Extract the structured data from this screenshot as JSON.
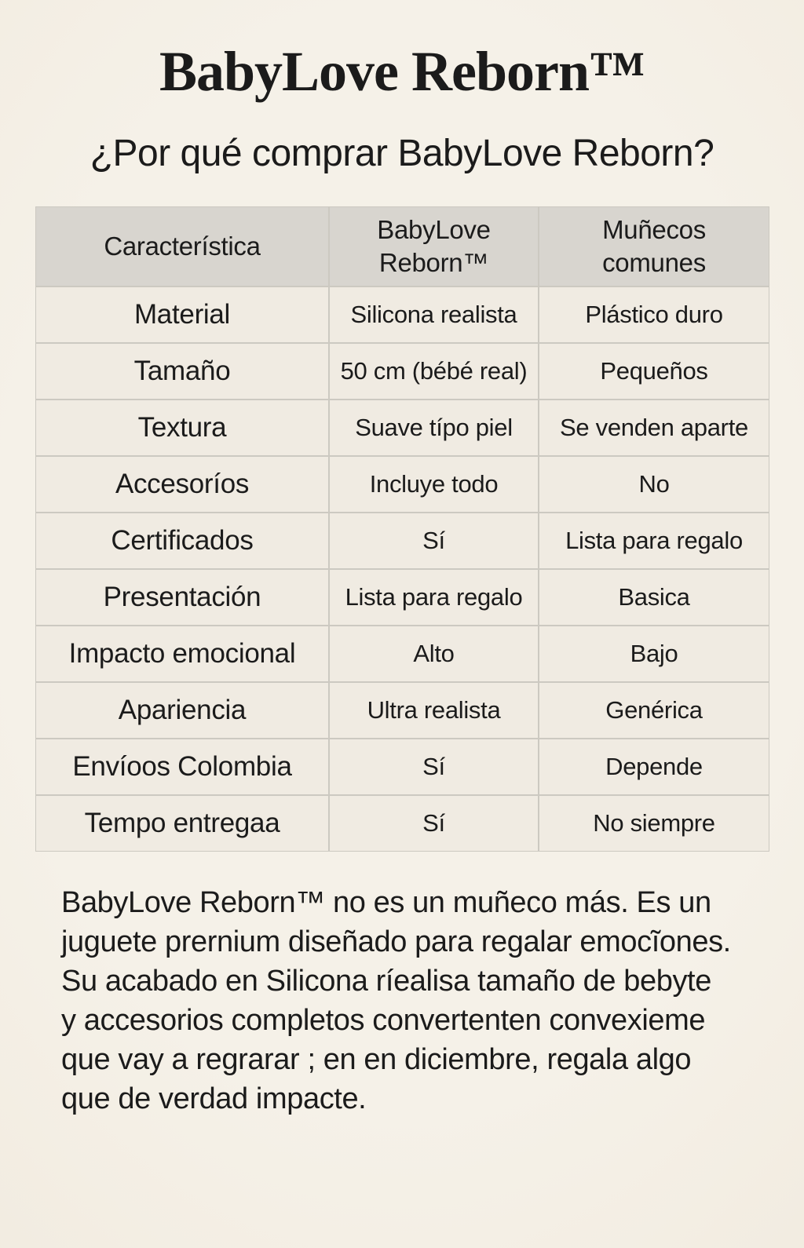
{
  "colors": {
    "bg": "#f5f1e8",
    "bg_edge": "#f1eade",
    "ink": "#1b1b1b",
    "cell": "#f0ebe2",
    "header": "#d8d5cf",
    "line": "#ccc9c1"
  },
  "page": {
    "title": "BabyLove Reborn™",
    "subtitle": "¿Por qué comprar BabyLove Reborn?"
  },
  "table": {
    "headers": {
      "feature": "Característica",
      "babylove": "BabyLove\nReborn™",
      "common": "Muñecos\ncomunes"
    },
    "rows": [
      {
        "feature": "Material",
        "babylove": "Silicona realista",
        "common": "Plástico duro"
      },
      {
        "feature": "Tamaño",
        "babylove": "50 cm (bébé real)",
        "common": "Pequeños"
      },
      {
        "feature": "Textura",
        "babylove": "Suave típo piel",
        "common": "Se venden aparte"
      },
      {
        "feature": "Accesoríos",
        "babylove": "Incluye todo",
        "common": "No"
      },
      {
        "feature": "Certificados",
        "babylove": "Sí",
        "common": "Lista para regalo"
      },
      {
        "feature": "Presentación",
        "babylove": "Lista para regalo",
        "common": "Basica"
      },
      {
        "feature": "Impacto emocional",
        "babylove": "Alto",
        "common": "Bajo"
      },
      {
        "feature": "Apariencia",
        "babylove": "Ultra realista",
        "common": "Genérica"
      },
      {
        "feature": "Envíoos Colombia",
        "babylove": "Sí",
        "common": "Depende"
      },
      {
        "feature": "Tempo entregaa",
        "babylove": "Sí",
        "common": "No siempre"
      }
    ]
  },
  "paragraph": {
    "lines": [
      "BabyLove Reborn™ no es un muñeco más. Es un",
      "juguete prernium diseñado para regalar emocĩones.",
      "Su acabado en Silicona ríealisa tamaño de bebyte",
      "y accesorios completos convertenten convexieme",
      "que vay a regrarar ; en en diciembre, regala algo",
      "que de verdad impacte."
    ]
  }
}
